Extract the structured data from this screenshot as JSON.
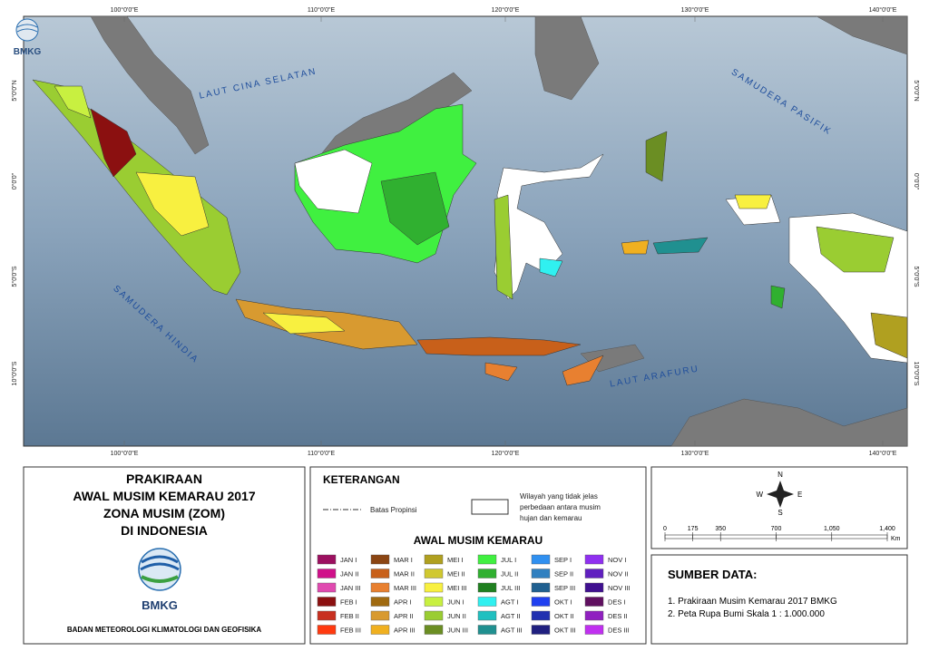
{
  "map": {
    "logo": "BMKG",
    "lon_labels": [
      "100°0'0\"E",
      "110°0'0\"E",
      "120°0'0\"E",
      "130°0'0\"E",
      "140°0'0\"E"
    ],
    "lat_labels": [
      "5°0'0\"N",
      "0°0'0\"",
      "5°0'0\"S",
      "10°0'0\"S"
    ],
    "sea_labels": [
      "LAUT CINA SELATAN",
      "SAMUDERA PASIFIK",
      "SAMUDERA HINDIA",
      "LAUT ARAFURU"
    ]
  },
  "title_panel": {
    "lines": [
      "PRAKIRAAN",
      "AWAL MUSIM KEMARAU 2017",
      "ZONA MUSIM (ZOM)",
      "DI INDONESIA"
    ],
    "logo": "BMKG",
    "agency": "BADAN METEOROLOGI KLIMATOLOGI DAN GEOFISIKA"
  },
  "legend": {
    "title": "KETERANGAN",
    "boundary": "Batas Propinsi",
    "unclear": [
      "Wilayah yang tidak jelas",
      "perbedaan antara musim",
      "hujan dan kemarau"
    ],
    "subtitle": "AWAL MUSIM KEMARAU",
    "items": [
      {
        "name": "JAN I",
        "color": "#9c1060"
      },
      {
        "name": "JAN II",
        "color": "#d0108a"
      },
      {
        "name": "JAN III",
        "color": "#e04ab0"
      },
      {
        "name": "FEB I",
        "color": "#8b1010"
      },
      {
        "name": "FEB II",
        "color": "#c83020"
      },
      {
        "name": "FEB III",
        "color": "#ff3a10"
      },
      {
        "name": "MAR I",
        "color": "#8b4513"
      },
      {
        "name": "MAR II",
        "color": "#c8601a"
      },
      {
        "name": "MAR III",
        "color": "#e88030"
      },
      {
        "name": "APR I",
        "color": "#a06a10"
      },
      {
        "name": "APR II",
        "color": "#d89a30"
      },
      {
        "name": "APR III",
        "color": "#f0b020"
      },
      {
        "name": "MEI I",
        "color": "#b0a020"
      },
      {
        "name": "MEI II",
        "color": "#d0c830"
      },
      {
        "name": "MEI III",
        "color": "#f8f040"
      },
      {
        "name": "JUN I",
        "color": "#c8f040"
      },
      {
        "name": "JUN II",
        "color": "#9acd32"
      },
      {
        "name": "JUN III",
        "color": "#6b8e23"
      },
      {
        "name": "JUL I",
        "color": "#40f040"
      },
      {
        "name": "JUL II",
        "color": "#30b030"
      },
      {
        "name": "JUL III",
        "color": "#208020"
      },
      {
        "name": "AGT I",
        "color": "#30f0f0"
      },
      {
        "name": "AGT II",
        "color": "#20c0c0"
      },
      {
        "name": "AGT III",
        "color": "#209090"
      },
      {
        "name": "SEP I",
        "color": "#3090f0"
      },
      {
        "name": "SEP II",
        "color": "#3080c0"
      },
      {
        "name": "SEP III",
        "color": "#206090"
      },
      {
        "name": "OKT I",
        "color": "#2040f0"
      },
      {
        "name": "OKT II",
        "color": "#2030b0"
      },
      {
        "name": "OKT III",
        "color": "#202080"
      },
      {
        "name": "NOV I",
        "color": "#9030f0"
      },
      {
        "name": "NOV II",
        "color": "#6020c0"
      },
      {
        "name": "NOV III",
        "color": "#401090"
      },
      {
        "name": "DES I",
        "color": "#601060"
      },
      {
        "name": "DES II",
        "color": "#9020c0"
      },
      {
        "name": "DES III",
        "color": "#c030f0"
      }
    ]
  },
  "compass": {
    "n": "N",
    "e": "E",
    "s": "S",
    "w": "W"
  },
  "scale_bar": {
    "ticks": [
      0,
      175,
      350,
      700,
      {
        "value": 1050,
        "label": "1,050"
      },
      {
        "value": 1400,
        "label": "1,400"
      }
    ],
    "unit": "Km"
  },
  "sources": {
    "title": "SUMBER DATA:",
    "items": [
      "1. Prakiraan Musim Kemarau 2017 BMKG",
      "2. Peta Rupa Bumi Skala 1 : 1.000.000"
    ]
  }
}
